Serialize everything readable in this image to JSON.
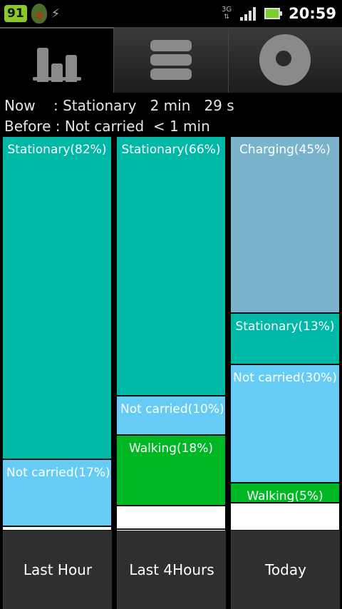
{
  "status_bar": {
    "battery_badge": "91",
    "network": "3G",
    "time": "20:59"
  },
  "tabs": [
    {
      "icon": "bar-chart-icon",
      "active": true
    },
    {
      "icon": "list-icon",
      "active": false
    },
    {
      "icon": "gauge-icon",
      "active": false
    }
  ],
  "status": {
    "now": "Now    : Stationary   2 min   29 s",
    "before": "Before : Not carried  < 1 min"
  },
  "colors": {
    "Stationary": "#00b8a6",
    "Not carried": "#66ccf5",
    "Walking": "#00b824",
    "Charging": "#7ab3cc",
    "Unknown": "#ffffff"
  },
  "columns": [
    {
      "name": "Last Hour",
      "segments": [
        {
          "label": "Stationary(82%)",
          "type": "Stationary",
          "pct": 82
        },
        {
          "label": "Not carried(17%)",
          "type": "Not carried",
          "pct": 17
        },
        {
          "label": "",
          "type": "Unknown",
          "pct": 1
        }
      ]
    },
    {
      "name": "Last 4Hours",
      "segments": [
        {
          "label": "Stationary(66%)",
          "type": "Stationary",
          "pct": 66
        },
        {
          "label": "Not carried(10%)",
          "type": "Not carried",
          "pct": 10
        },
        {
          "label": "Walking(18%)",
          "type": "Walking",
          "pct": 18
        },
        {
          "label": "",
          "type": "Unknown",
          "pct": 6
        }
      ]
    },
    {
      "name": "Today",
      "segments": [
        {
          "label": "Charging(45%)",
          "type": "Charging",
          "pct": 45
        },
        {
          "label": "Stationary(13%)",
          "type": "Stationary",
          "pct": 13
        },
        {
          "label": "Not carried(30%)",
          "type": "Not carried",
          "pct": 30
        },
        {
          "label": "Walking(5%)",
          "type": "Walking",
          "pct": 5
        },
        {
          "label": "",
          "type": "Unknown",
          "pct": 7
        }
      ]
    }
  ]
}
